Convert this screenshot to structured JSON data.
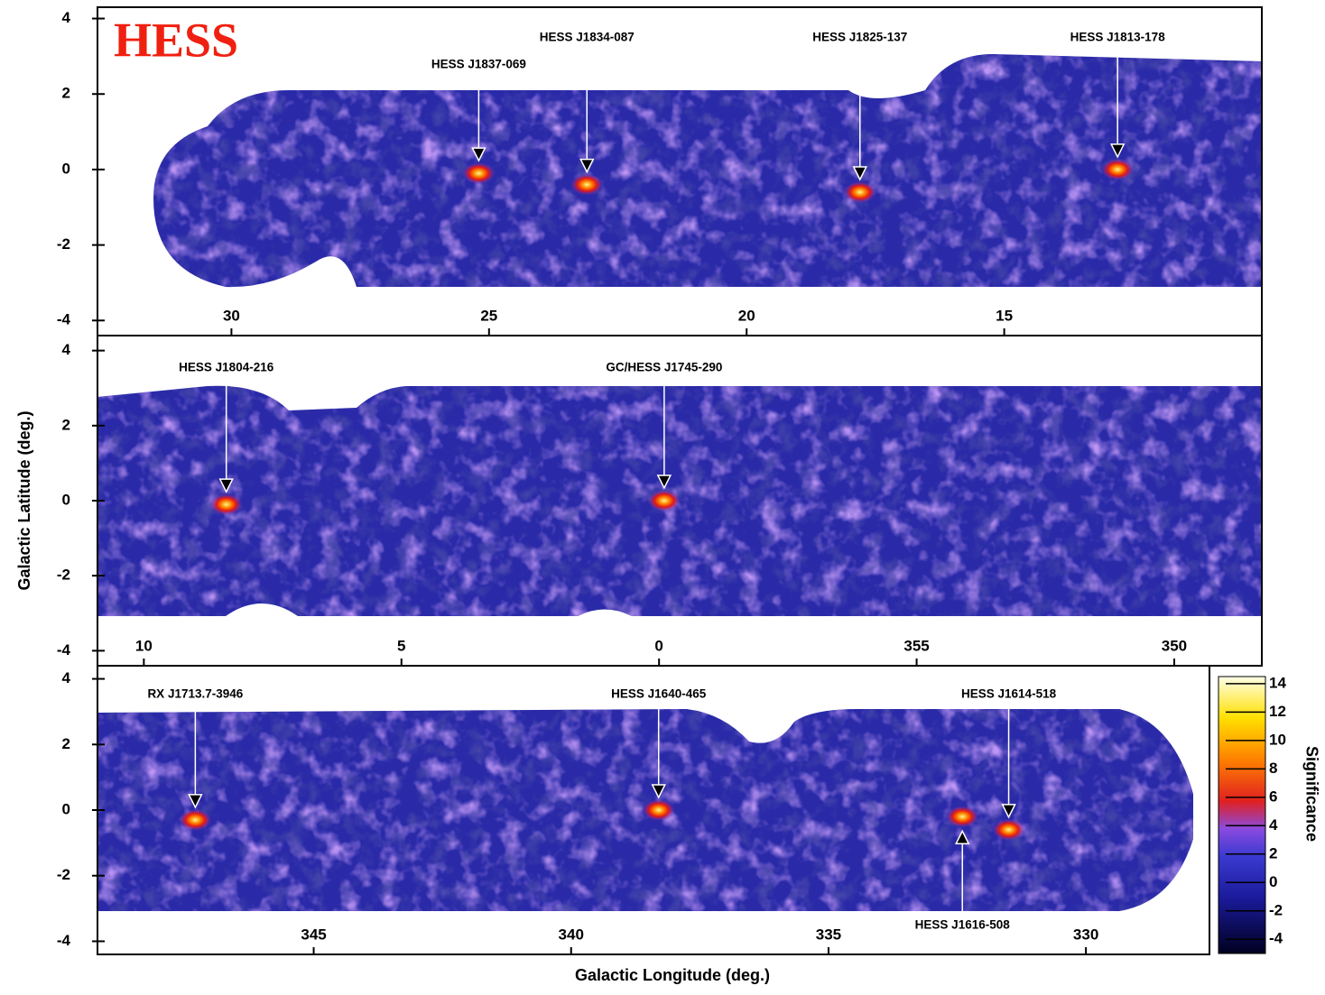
{
  "chart_data": [
    {
      "type": "skymap",
      "title": "HESS",
      "xlim": [
        32.6,
        10.0
      ],
      "xticks": [
        30,
        25,
        20,
        15
      ],
      "ylim": [
        -4.4,
        4.3
      ],
      "yticks": [
        -4,
        -2,
        0,
        2,
        4
      ],
      "sources": [
        {
          "name": "HESS J1837-069",
          "x": 25.2,
          "y": -0.1
        },
        {
          "name": "HESS J1834-087",
          "x": 23.1,
          "y": -0.4
        },
        {
          "name": "HESS J1825-137",
          "x": 17.8,
          "y": -0.6
        },
        {
          "name": "HESS J1813-178",
          "x": 12.8,
          "y": 0
        }
      ]
    },
    {
      "type": "skymap",
      "ylabel": "Galactic Latitude (deg.)",
      "xlim": [
        10.9,
        -11.7
      ],
      "xticks": [
        10,
        5,
        0,
        {
          "value": -5,
          "label": "355"
        },
        {
          "value": -10,
          "label": "350"
        }
      ],
      "ylim": [
        -4.4,
        4.4
      ],
      "yticks": [
        -4,
        -2,
        0,
        2,
        4
      ],
      "sources": [
        {
          "name": "HESS J1804-216",
          "x": 8.4,
          "y": -0.1
        },
        {
          "name": "GC/HESS J1745-290",
          "x": -0.1,
          "y": 0
        }
      ]
    },
    {
      "type": "skymap",
      "xlabel": "Galactic Longitude (deg.)",
      "xlim": [
        349.2,
        327.6
      ],
      "xticks": [
        345,
        340,
        335,
        330
      ],
      "ylim": [
        -4.4,
        4.4
      ],
      "yticks": [
        -4,
        -2,
        0,
        2,
        4
      ],
      "sources": [
        {
          "name": "RX J1713.7-3946",
          "x": 347.3,
          "y": -0.3
        },
        {
          "name": "HESS J1640-465",
          "x": 338.3,
          "y": 0
        },
        {
          "name": "HESS J1614-518",
          "x": 331.5,
          "y": -0.6
        },
        {
          "name": "HESS J1616-508",
          "x": 332.4,
          "y": -0.2
        }
      ],
      "colorbar": {
        "label": "Significance",
        "lim": [
          -5,
          14.5
        ],
        "ticks": [
          -4,
          -2,
          0,
          2,
          4,
          6,
          8,
          10,
          12,
          14
        ]
      }
    }
  ]
}
